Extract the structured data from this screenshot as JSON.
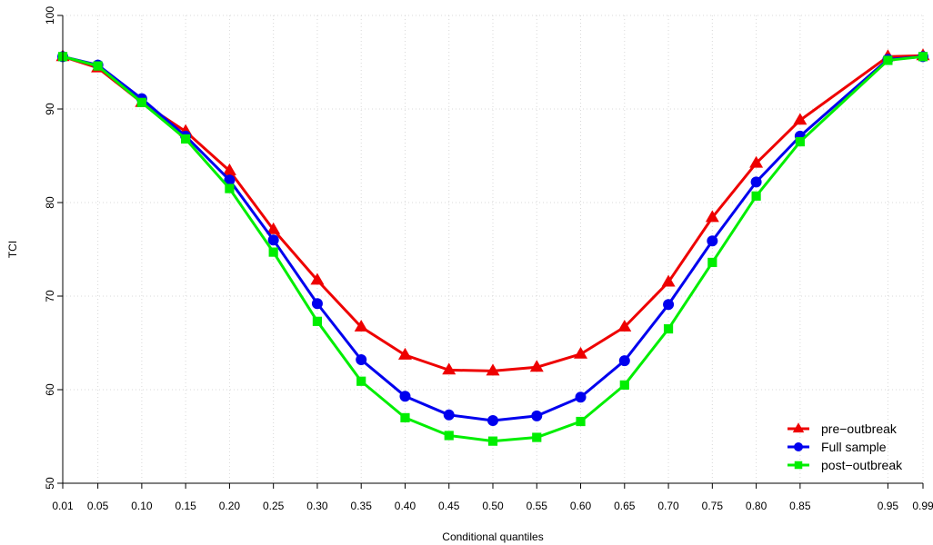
{
  "chart_data": {
    "type": "line",
    "xlabel": "Conditional quantiles",
    "ylabel": "TCI",
    "x": [
      0.01,
      0.05,
      0.1,
      0.15,
      0.2,
      0.25,
      0.3,
      0.35,
      0.4,
      0.45,
      0.5,
      0.55,
      0.6,
      0.65,
      0.7,
      0.75,
      0.8,
      0.85,
      0.95,
      0.99
    ],
    "x_tick_labels": [
      "0.01",
      "0.05",
      "0.10",
      "0.15",
      "0.20",
      "0.25",
      "0.30",
      "0.35",
      "0.40",
      "0.45",
      "0.50",
      "0.55",
      "0.60",
      "0.65",
      "0.70",
      "0.75",
      "0.80",
      "0.85",
      "0.95",
      "0.99"
    ],
    "xlim": [
      0.01,
      0.99
    ],
    "ylim": [
      50,
      100
    ],
    "y_ticks": [
      50,
      60,
      70,
      80,
      90,
      100
    ],
    "grid": true,
    "legend_position": "bottom-right",
    "series": [
      {
        "name": "pre−outbreak",
        "color": "#ee0000",
        "marker": "triangle",
        "values": [
          95.6,
          94.4,
          90.7,
          87.6,
          83.4,
          77.1,
          71.7,
          66.7,
          63.7,
          62.1,
          62.0,
          62.4,
          63.8,
          66.7,
          71.5,
          78.4,
          84.2,
          88.8,
          95.6,
          95.7
        ]
      },
      {
        "name": "Full sample",
        "color": "#0000ee",
        "marker": "circle",
        "values": [
          95.6,
          94.7,
          91.1,
          87.1,
          82.4,
          76.0,
          69.2,
          63.2,
          59.3,
          57.3,
          56.7,
          57.2,
          59.2,
          63.1,
          69.1,
          75.9,
          82.2,
          87.1,
          95.3,
          95.6
        ]
      },
      {
        "name": "post−outbreak",
        "color": "#00ee00",
        "marker": "square",
        "values": [
          95.6,
          94.6,
          90.7,
          86.8,
          81.5,
          74.7,
          67.3,
          60.9,
          57.0,
          55.1,
          54.5,
          54.9,
          56.6,
          60.5,
          66.5,
          73.6,
          80.7,
          86.5,
          95.2,
          95.6
        ]
      }
    ]
  }
}
